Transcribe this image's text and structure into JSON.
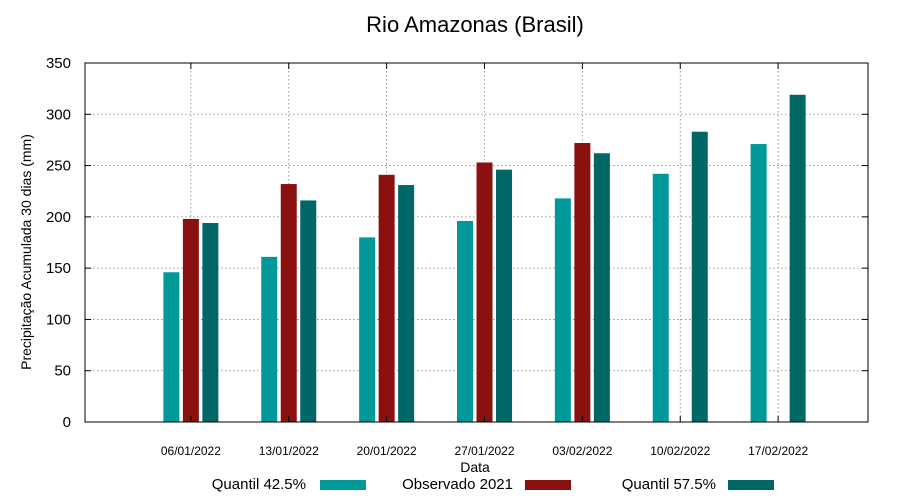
{
  "chart_data": {
    "type": "bar",
    "title": "Rio Amazonas (Brasil)",
    "xlabel": "Data",
    "ylabel": "Precipitação Acumulada 30 dias (mm)",
    "ylim": [
      0,
      350
    ],
    "yticks": [
      0,
      50,
      100,
      150,
      200,
      250,
      300,
      350
    ],
    "grid": true,
    "legend_position": "bottom",
    "categories": [
      "06/01/2022",
      "13/01/2022",
      "20/01/2022",
      "27/01/2022",
      "03/02/2022",
      "10/02/2022",
      "17/02/2022"
    ],
    "series": [
      {
        "name": "Quantil 42.5%",
        "color": "#009999",
        "values": [
          146,
          161,
          180,
          196,
          218,
          242,
          271
        ]
      },
      {
        "name": "Observado 2021",
        "color": "#8b1010",
        "values": [
          198,
          232,
          241,
          253,
          272,
          null,
          null
        ]
      },
      {
        "name": "Quantil 57.5%",
        "color": "#006666",
        "values": [
          194,
          216,
          231,
          246,
          262,
          283,
          319
        ]
      }
    ]
  }
}
